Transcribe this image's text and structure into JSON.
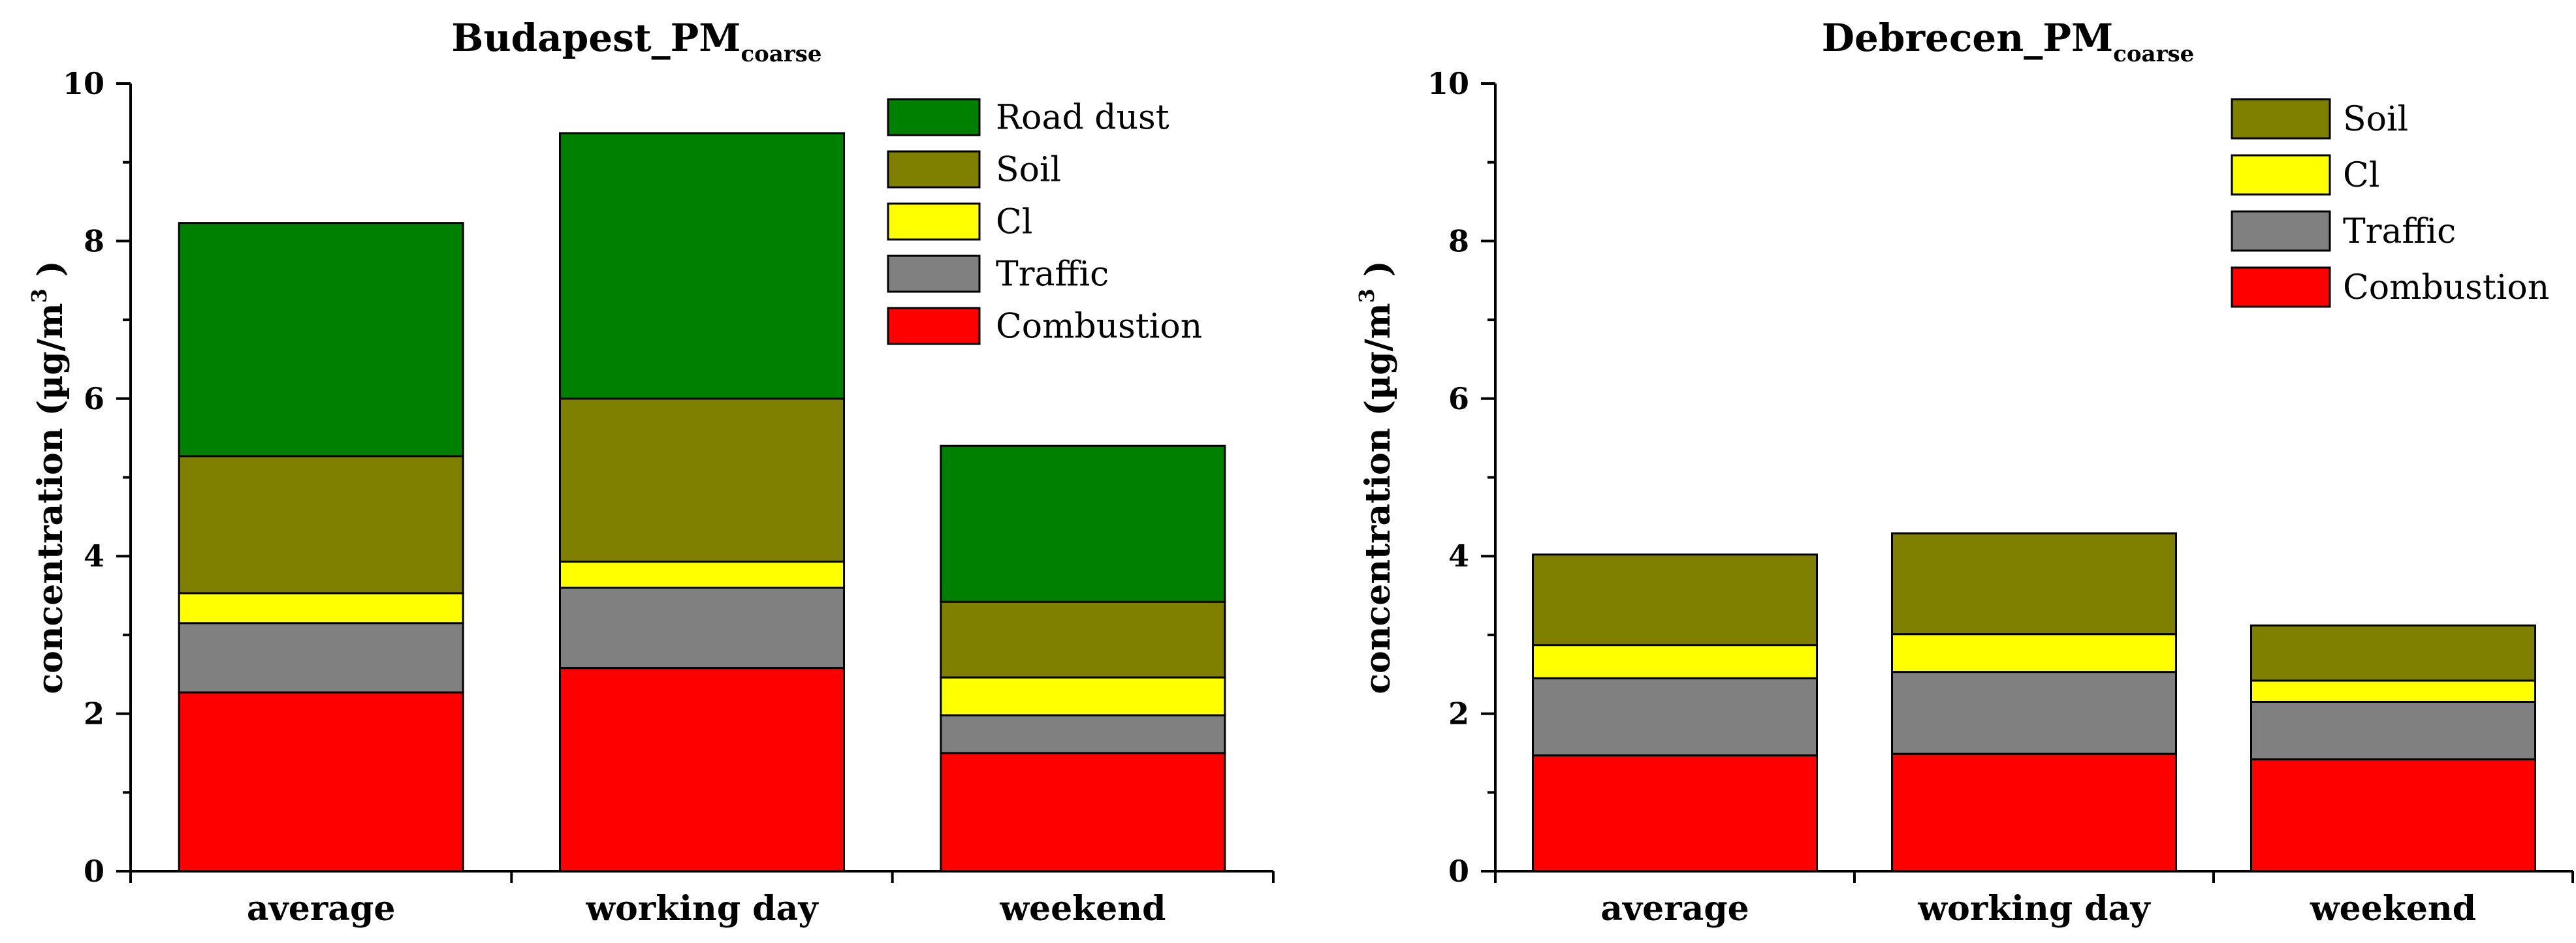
{
  "chart_data": [
    {
      "type": "bar",
      "stacked": true,
      "title": "Budapest_PM",
      "title_subscript": "coarse",
      "ylabel": "concentration (µg/m",
      "ylabel_superscript": "3",
      "ylabel_close": " )",
      "xlabel": "",
      "ylim": [
        0,
        10
      ],
      "yticks": [
        "0",
        "2",
        "4",
        "6",
        "8",
        "10"
      ],
      "categories": [
        "average",
        "working day",
        "weekend"
      ],
      "legend_position": "top-right",
      "legend_order": [
        "Road dust",
        "Soil",
        "Cl",
        "Traffic",
        "Combustion"
      ],
      "series": [
        {
          "name": "Combustion",
          "color": "#ff0000",
          "values": [
            2.27,
            2.58,
            1.5
          ]
        },
        {
          "name": "Traffic",
          "color": "#808080",
          "values": [
            0.88,
            1.02,
            0.48
          ]
        },
        {
          "name": "Cl",
          "color": "#ffff00",
          "values": [
            0.38,
            0.33,
            0.48
          ]
        },
        {
          "name": "Soil",
          "color": "#808000",
          "values": [
            1.74,
            2.07,
            0.96
          ]
        },
        {
          "name": "Road dust",
          "color": "#008000",
          "values": [
            2.96,
            3.37,
            1.98
          ]
        }
      ]
    },
    {
      "type": "bar",
      "stacked": true,
      "title": "Debrecen_PM",
      "title_subscript": "coarse",
      "ylabel": "concentration (µg/m",
      "ylabel_superscript": "3",
      "ylabel_close": " )",
      "xlabel": "",
      "ylim": [
        0,
        10
      ],
      "yticks": [
        "0",
        "2",
        "4",
        "6",
        "8",
        "10"
      ],
      "categories": [
        "average",
        "working day",
        "weekend"
      ],
      "legend_position": "top-right",
      "legend_order": [
        "Soil",
        "Cl",
        "Traffic",
        "Combustion"
      ],
      "series": [
        {
          "name": "Combustion",
          "color": "#ff0000",
          "values": [
            1.47,
            1.49,
            1.42
          ]
        },
        {
          "name": "Traffic",
          "color": "#808080",
          "values": [
            0.98,
            1.04,
            0.73
          ]
        },
        {
          "name": "Cl",
          "color": "#ffff00",
          "values": [
            0.42,
            0.48,
            0.27
          ]
        },
        {
          "name": "Soil",
          "color": "#808000",
          "values": [
            1.15,
            1.28,
            0.7
          ]
        }
      ]
    }
  ]
}
